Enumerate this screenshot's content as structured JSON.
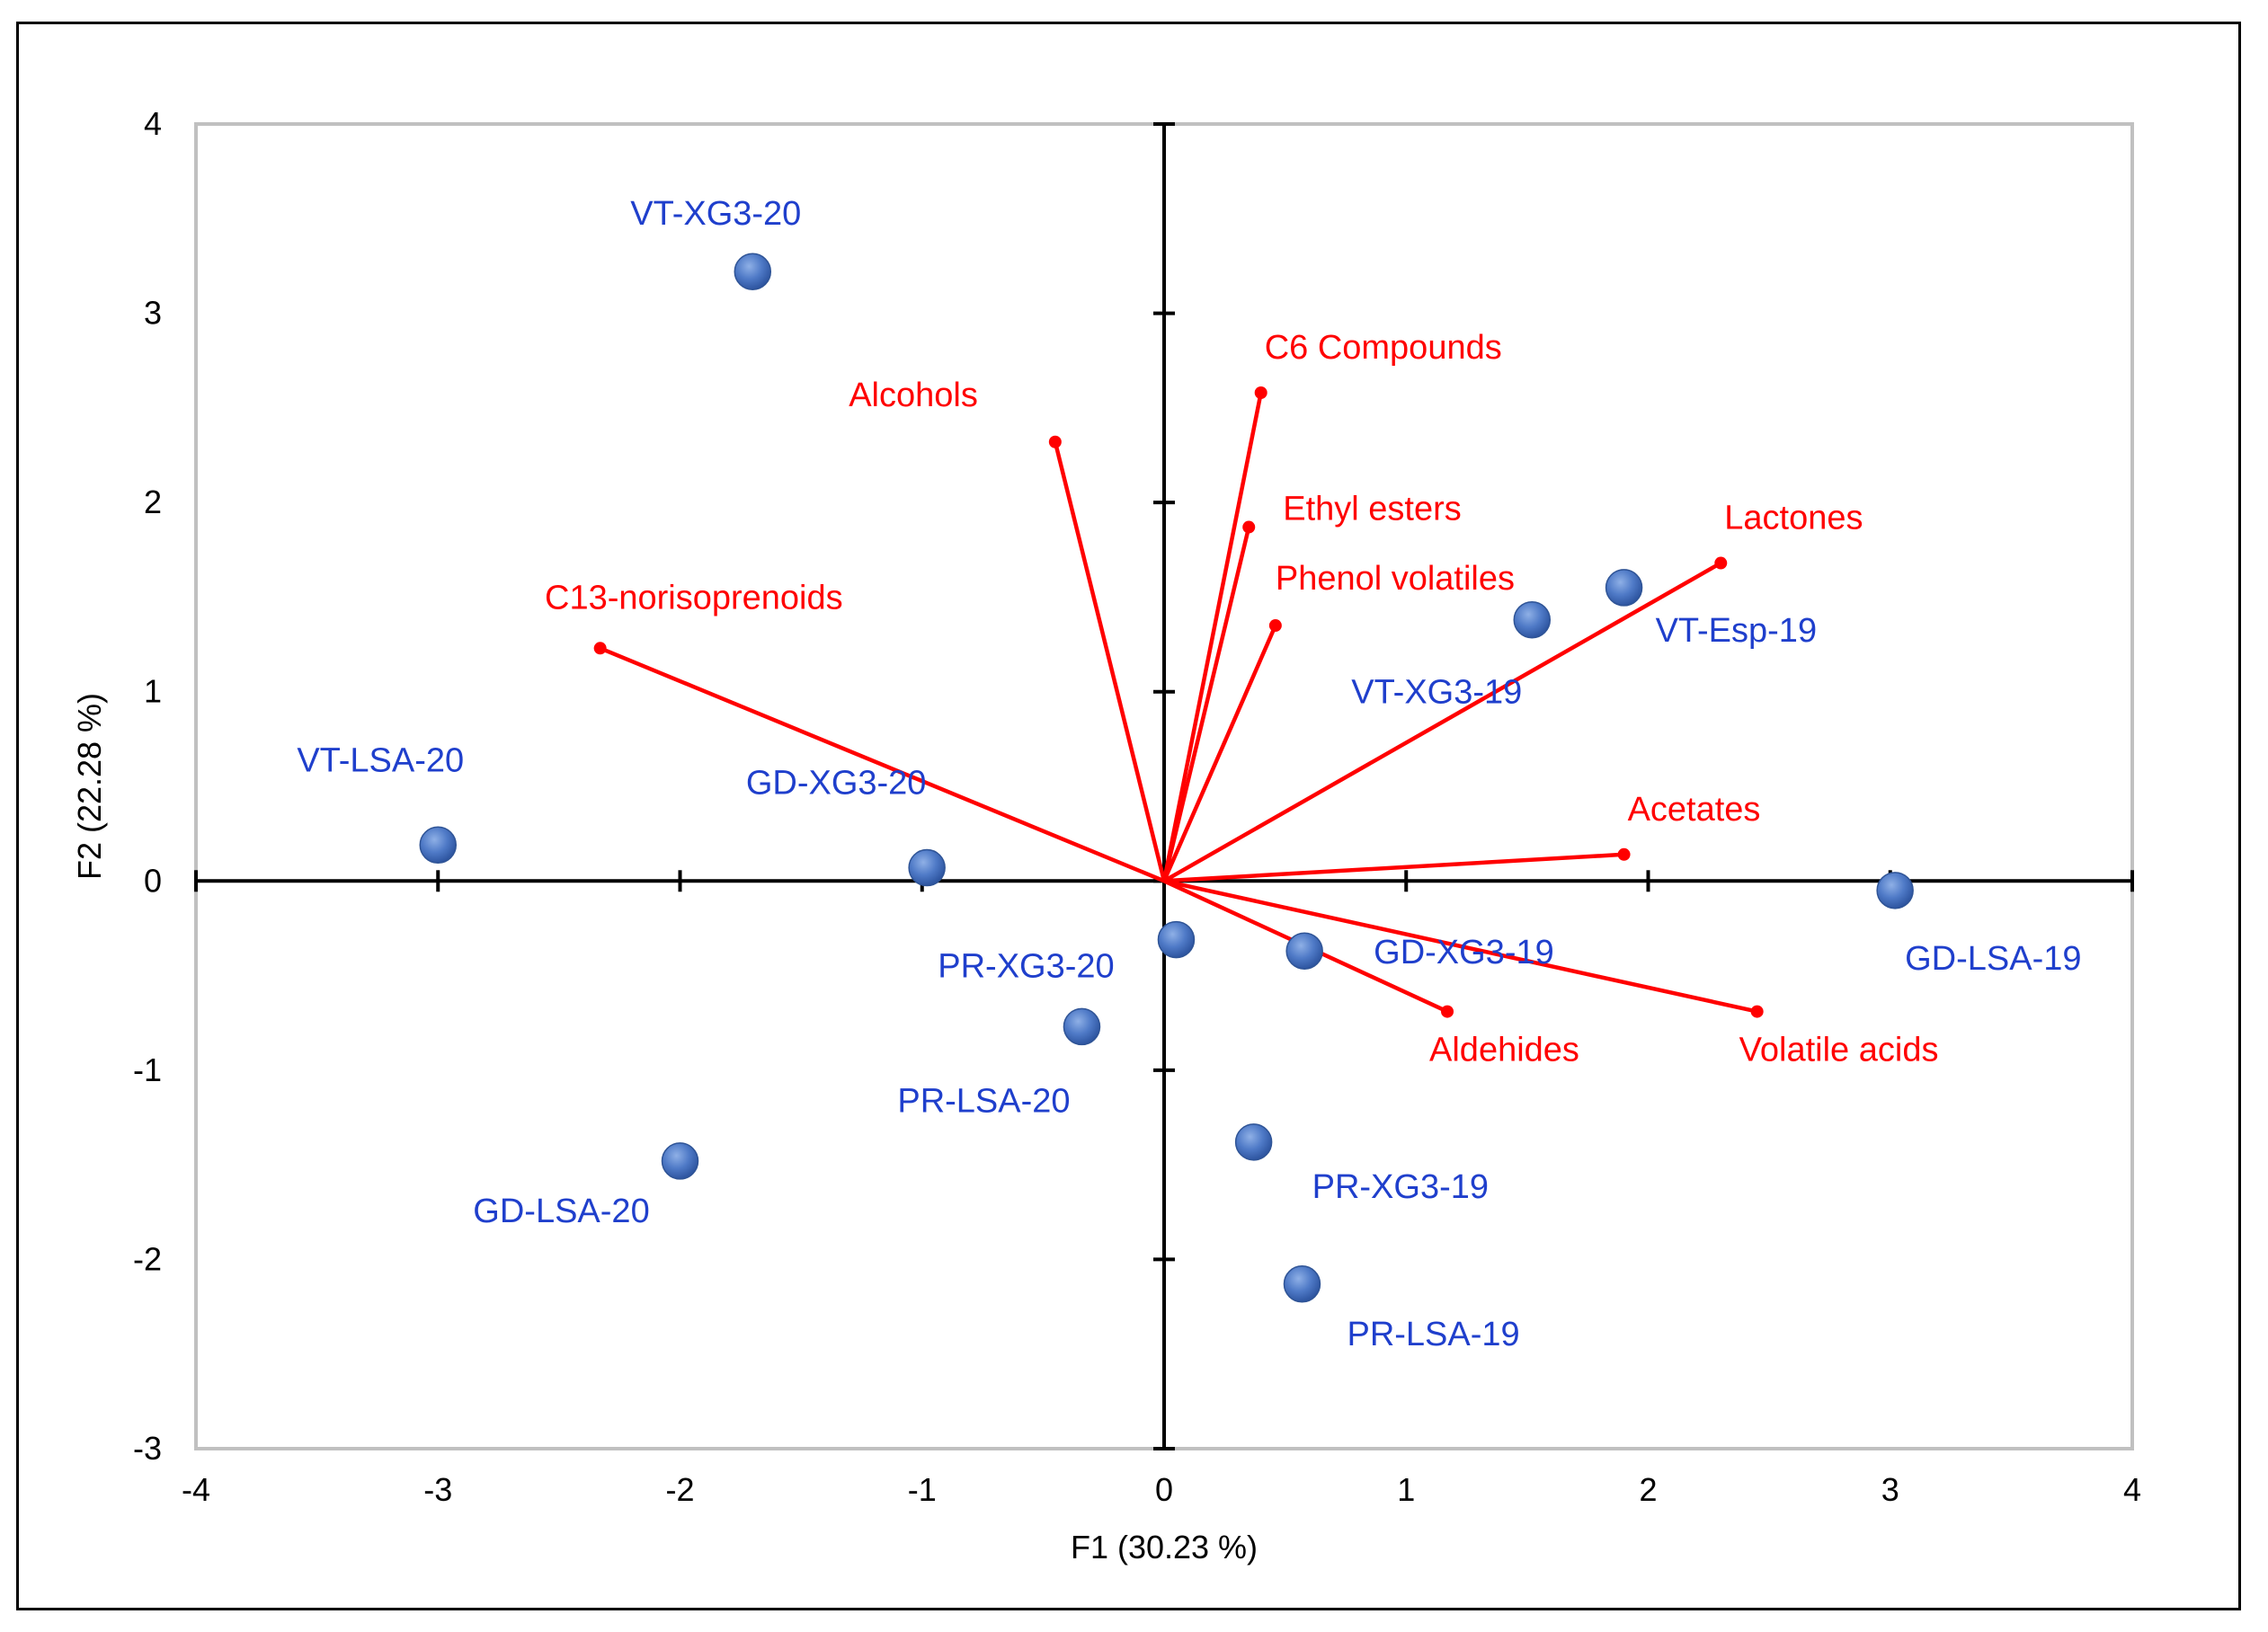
{
  "chart_data": {
    "type": "scatter",
    "subtype": "pca-biplot",
    "xlabel": "F1 (30.23 %)",
    "ylabel": "F2 (22.28 %)",
    "xlim": [
      -4,
      4
    ],
    "ylim": [
      -3,
      4
    ],
    "xticks": [
      -4,
      -3,
      -2,
      -1,
      0,
      1,
      2,
      3,
      4
    ],
    "yticks": [
      -3,
      -2,
      -1,
      0,
      1,
      2,
      3,
      4
    ],
    "grid": false,
    "colors": {
      "observations": "#1f3fcc",
      "point_fill": "#4f7ac7",
      "variables": "#ff0000",
      "axes": "#000000",
      "plot_border": "#c0c0c0"
    },
    "observations": [
      {
        "label": "VT-XG3-20",
        "x": -1.7,
        "y": 3.22,
        "label_anchor": "above-left"
      },
      {
        "label": "VT-LSA-20",
        "x": -3.0,
        "y": 0.19,
        "label_anchor": "above-left"
      },
      {
        "label": "GD-XG3-20",
        "x": -0.98,
        "y": 0.07,
        "label_anchor": "above-left"
      },
      {
        "label": "GD-LSA-20",
        "x": -2.0,
        "y": -1.48,
        "label_anchor": "below-left"
      },
      {
        "label": "PR-XG3-20",
        "x": 0.05,
        "y": -0.31,
        "label_anchor": "below-left"
      },
      {
        "label": "PR-LSA-20",
        "x": -0.34,
        "y": -0.77,
        "label_anchor": "below-left"
      },
      {
        "label": "GD-XG3-19",
        "x": 0.58,
        "y": -0.37,
        "label_anchor": "right"
      },
      {
        "label": "PR-XG3-19",
        "x": 0.37,
        "y": -1.38,
        "label_anchor": "below-right"
      },
      {
        "label": "PR-LSA-19",
        "x": 0.57,
        "y": -2.13,
        "label_anchor": "below-right"
      },
      {
        "label": "VT-XG3-19",
        "x": 1.52,
        "y": 1.38,
        "label_anchor": "below-left"
      },
      {
        "label": "VT-Esp-19",
        "x": 1.9,
        "y": 1.55,
        "label_anchor": "below-right"
      },
      {
        "label": "GD-LSA-19",
        "x": 3.02,
        "y": -0.05,
        "label_anchor": "below-right"
      }
    ],
    "variables": [
      {
        "label": "C6 Compounds",
        "x": 0.4,
        "y": 2.58,
        "label_anchor": "above-right"
      },
      {
        "label": "Alcohols",
        "x": -0.45,
        "y": 2.32,
        "label_anchor": "above-left"
      },
      {
        "label": "Ethyl esters",
        "x": 0.35,
        "y": 1.87,
        "label_anchor": "right"
      },
      {
        "label": "Phenol volatiles",
        "x": 0.46,
        "y": 1.35,
        "label_anchor": "above-right"
      },
      {
        "label": "Lactones",
        "x": 2.3,
        "y": 1.68,
        "label_anchor": "above-right"
      },
      {
        "label": "C13-norisoprenoids",
        "x": -2.33,
        "y": 1.23,
        "label_anchor": "above-left"
      },
      {
        "label": "Acetates",
        "x": 1.9,
        "y": 0.14,
        "label_anchor": "above-right"
      },
      {
        "label": "Aldehides",
        "x": 1.17,
        "y": -0.69,
        "label_anchor": "below-right"
      },
      {
        "label": "Volatile acids",
        "x": 2.45,
        "y": -0.69,
        "label_anchor": "below-right"
      }
    ]
  }
}
